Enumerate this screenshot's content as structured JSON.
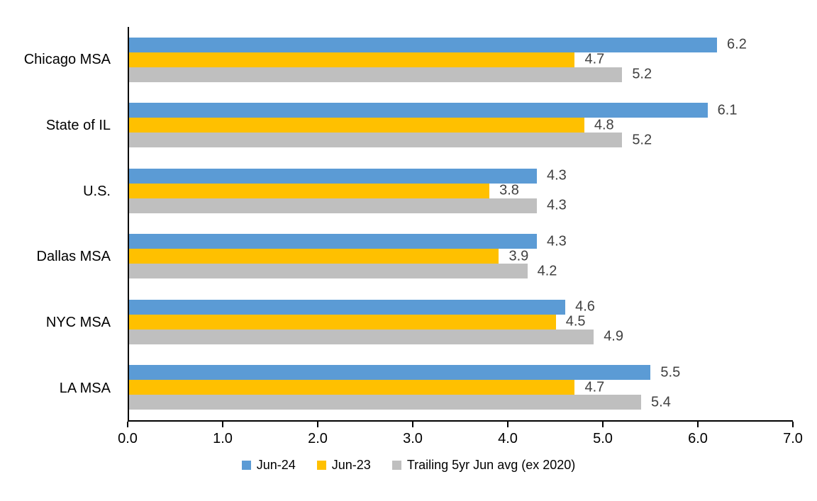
{
  "chart_data": {
    "type": "bar",
    "orientation": "horizontal",
    "title": "",
    "categories": [
      "Chicago MSA",
      "State of IL",
      "U.S.",
      "Dallas MSA",
      "NYC MSA",
      "LA MSA"
    ],
    "series": [
      {
        "name": "Jun-24",
        "color": "#5B9BD5",
        "values": [
          6.2,
          6.1,
          4.3,
          4.3,
          4.6,
          5.5
        ]
      },
      {
        "name": "Jun-23",
        "color": "#FFC000",
        "values": [
          4.7,
          4.8,
          3.8,
          3.9,
          4.5,
          4.7
        ]
      },
      {
        "name": "Trailing 5yr Jun avg (ex 2020)",
        "color": "#BFBFBF",
        "values": [
          5.2,
          5.2,
          4.3,
          4.2,
          4.9,
          5.4
        ]
      }
    ],
    "xlim": [
      0,
      7
    ],
    "xtick_labels": [
      "0.0",
      "1.0",
      "2.0",
      "3.0",
      "4.0",
      "5.0",
      "6.0",
      "7.0"
    ],
    "value_labels_shown": true,
    "legend_position": "bottom",
    "grid": false
  },
  "colors": {
    "background": "#FFFFFF",
    "axis_line": "#000000",
    "category_label_text": "#000000",
    "tick_label_text": "#000000",
    "value_label_text": "#404040",
    "legend_text": "#000000"
  }
}
